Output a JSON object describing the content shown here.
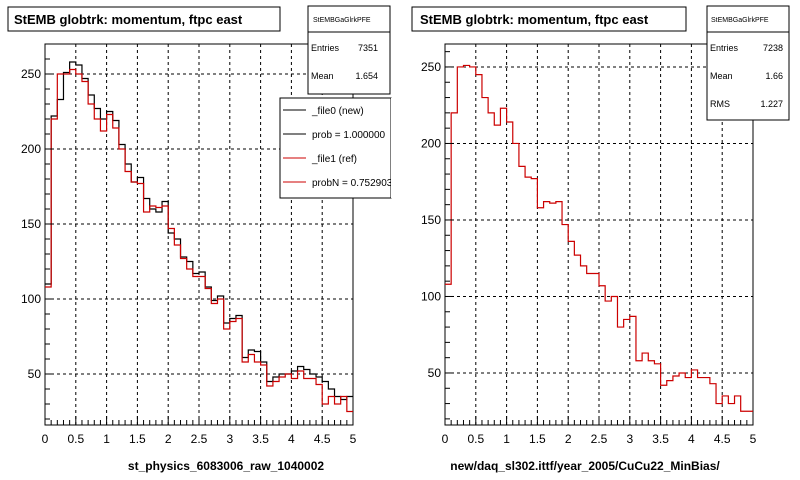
{
  "footer_text": "",
  "colors": {
    "new": "#000000",
    "ref": "#cc0000",
    "grid": "#000000",
    "frame": "#000000"
  },
  "panels": [
    {
      "id": "left",
      "title": "StEMB globtrk: momentum, ftpc east",
      "stats": {
        "name": "StEMBGaGlrkPFE",
        "rows": [
          {
            "label": "Entries",
            "value": "7351"
          },
          {
            "label": "Mean",
            "value": "1.654"
          }
        ]
      },
      "legend": [
        {
          "label": "_file0 (new)",
          "color": "#000000"
        },
        {
          "label": "prob = 1.000000",
          "color": "#000000"
        },
        {
          "label": "_file1 (ref)",
          "color": "#cc0000"
        },
        {
          "label": "probN = 0.752903",
          "color": "#cc0000"
        }
      ],
      "xlabel": "st_physics_6083006_raw_1040002"
    },
    {
      "id": "right",
      "title": "StEMB globtrk: momentum, ftpc east",
      "stats": {
        "name": "StEMBGaGlrkPFE",
        "rows": [
          {
            "label": "Entries",
            "value": "7238"
          },
          {
            "label": "Mean",
            "value": "1.66"
          },
          {
            "label": "RMS",
            "value": "1.227"
          }
        ]
      },
      "legend": [],
      "xlabel": "new/daq_sl302.ittf/year_2005/CuCu22_MinBias/"
    }
  ],
  "chart_data": [
    {
      "type": "line",
      "step": true,
      "title": "StEMB globtrk: momentum, ftpc east",
      "xlabel": "st_physics_6083006_raw_1040002",
      "ylabel": "",
      "xlim": [
        0,
        5
      ],
      "ylim": [
        16,
        270
      ],
      "xticks": [
        "0",
        "0.5",
        "1",
        "1.5",
        "2",
        "2.5",
        "3",
        "3.5",
        "4",
        "4.5",
        "5"
      ],
      "yticks": [
        "50",
        "100",
        "150",
        "200",
        "250"
      ],
      "grid": true,
      "legend_position": "top-right",
      "bin_width": 0.1,
      "series": [
        {
          "name": "_file0 (new)",
          "color": "#000000",
          "values": [
            110,
            222,
            233,
            251,
            258,
            256,
            247,
            236,
            227,
            220,
            225,
            219,
            203,
            190,
            178,
            181,
            167,
            160,
            158,
            165,
            144,
            140,
            128,
            125,
            117,
            118,
            108,
            99,
            102,
            84,
            87,
            89,
            61,
            66,
            65,
            58,
            45,
            48,
            50,
            50,
            52,
            55,
            53,
            50,
            48,
            45,
            40,
            35,
            33,
            35
          ]
        },
        {
          "name": "_file1 (ref)",
          "color": "#cc0000",
          "values": [
            108,
            220,
            250,
            250,
            253,
            250,
            245,
            230,
            220,
            212,
            223,
            214,
            200,
            185,
            178,
            177,
            158,
            162,
            161,
            162,
            147,
            136,
            127,
            120,
            115,
            115,
            107,
            97,
            100,
            80,
            85,
            87,
            58,
            63,
            58,
            56,
            42,
            45,
            48,
            50,
            47,
            52,
            47,
            47,
            43,
            30,
            35,
            30,
            35,
            25
          ]
        }
      ]
    },
    {
      "type": "line",
      "step": true,
      "title": "StEMB globtrk: momentum, ftpc east",
      "xlabel": "new/daq_sl302.ittf/year_2005/CuCu22_MinBias/",
      "ylabel": "",
      "xlim": [
        0,
        5
      ],
      "ylim": [
        16,
        265
      ],
      "xticks": [
        "0",
        "0.5",
        "1",
        "1.5",
        "2",
        "2.5",
        "3",
        "3.5",
        "4",
        "4.5",
        "5"
      ],
      "yticks": [
        "50",
        "100",
        "150",
        "200",
        "250"
      ],
      "grid": true,
      "bin_width": 0.1,
      "series": [
        {
          "color": "#cc0000",
          "values": [
            108,
            220,
            250,
            251,
            250,
            245,
            230,
            220,
            212,
            223,
            214,
            200,
            185,
            178,
            177,
            158,
            162,
            161,
            162,
            147,
            136,
            127,
            120,
            115,
            115,
            107,
            97,
            100,
            80,
            85,
            87,
            58,
            63,
            58,
            56,
            42,
            45,
            48,
            50,
            47,
            52,
            47,
            47,
            43,
            30,
            35,
            30,
            35,
            25,
            25
          ]
        }
      ]
    }
  ]
}
